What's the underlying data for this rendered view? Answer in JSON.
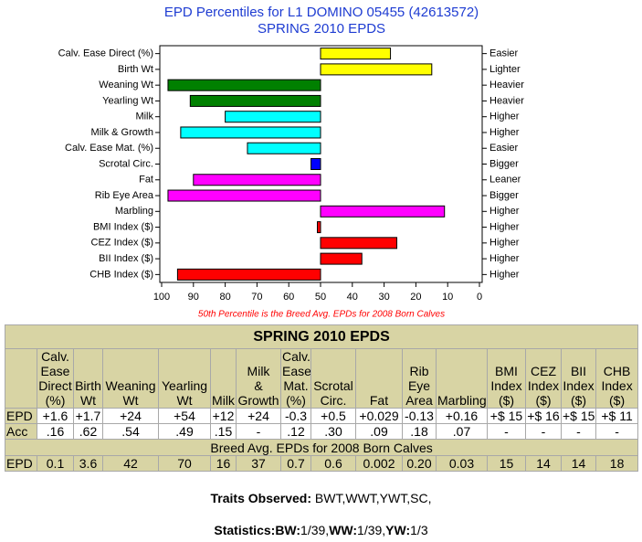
{
  "chart_data": {
    "type": "bar",
    "title": "EPD Percentiles for L1 DOMINO 05455 (42613572)",
    "subtitle": "SPRING 2010 EPDS",
    "categories": [
      "Calv. Ease Direct (%)",
      "Birth Wt",
      "Weaning Wt",
      "Yearling Wt",
      "Milk",
      "Milk & Growth",
      "Calv. Ease Mat. (%)",
      "Scrotal Circ.",
      "Fat",
      "Rib Eye Area",
      "Marbling",
      "BMI Index ($)",
      "CEZ Index ($)",
      "BII Index ($)",
      "CHB Index ($)"
    ],
    "values": [
      28,
      15,
      98,
      91,
      80,
      94,
      73,
      53,
      90,
      98,
      11,
      51,
      26,
      37,
      95
    ],
    "colors": [
      "#ffff00",
      "#ffff00",
      "#008000",
      "#008000",
      "#00ffff",
      "#00ffff",
      "#00ffff",
      "#0000ff",
      "#ff00ff",
      "#ff00ff",
      "#ff00ff",
      "#ff0000",
      "#ff0000",
      "#ff0000",
      "#ff0000"
    ],
    "base": 50,
    "right_labels": [
      "Easier",
      "Lighter",
      "Heavier",
      "Heavier",
      "Higher",
      "Higher",
      "Easier",
      "Bigger",
      "Leaner",
      "Bigger",
      "Higher",
      "Higher",
      "Higher",
      "Higher",
      "Higher"
    ],
    "xlim": [
      100,
      0
    ],
    "xticks": [
      100,
      90,
      80,
      70,
      60,
      50,
      40,
      30,
      20,
      10,
      0
    ],
    "note": "50th Percentile is the Breed Avg. EPDs for 2008 Born Calves"
  },
  "table": {
    "title": "SPRING 2010 EPDS",
    "columns": [
      [],
      [
        "Calv.",
        "Ease",
        "Direct",
        "(%)"
      ],
      [
        "Birth",
        "Wt"
      ],
      [
        "Weaning",
        "Wt"
      ],
      [
        "Yearling",
        "Wt"
      ],
      [
        "Milk"
      ],
      [
        "Milk",
        "&",
        "Growth"
      ],
      [
        "Calv.",
        "Ease",
        "Mat.",
        "(%)"
      ],
      [
        "Scrotal",
        "Circ."
      ],
      [
        "Fat"
      ],
      [
        "Rib",
        "Eye",
        "Area"
      ],
      [
        "Marbling"
      ],
      [
        "BMI",
        "Index",
        "($)"
      ],
      [
        "CEZ",
        "Index",
        "($)"
      ],
      [
        "BII",
        "Index",
        "($)"
      ],
      [
        "CHB",
        "Index",
        "($)"
      ]
    ],
    "rows": [
      [
        "EPD",
        "+1.6",
        "+1.7",
        "+24",
        "+54",
        "+12",
        "+24",
        "-0.3",
        "+0.5",
        "+0.029",
        "-0.13",
        "+0.16",
        "+$ 15",
        "+$ 16",
        "+$ 15",
        "+$ 11"
      ],
      [
        "Acc",
        ".16",
        ".62",
        ".54",
        ".49",
        ".15",
        "-",
        ".12",
        ".30",
        ".09",
        ".18",
        ".07",
        "-",
        "-",
        "-",
        "-"
      ]
    ],
    "breed_title": "Breed Avg. EPDs for 2008 Born Calves",
    "breed_row": [
      "EPD",
      "0.1",
      "3.6",
      "42",
      "70",
      "16",
      "37",
      "0.7",
      "0.6",
      "0.002",
      "0.20",
      "0.03",
      "15",
      "14",
      "14",
      "18"
    ]
  },
  "footer": {
    "traits_label": "Traits Observed:",
    "traits_value": "BWT,WWT,YWT,SC,",
    "statistics": [
      {
        "text": "Statistics:",
        "bold": true
      },
      {
        "text": "BW:",
        "bold": true
      },
      {
        "text": "1/39,",
        "bold": false
      },
      {
        "text": "WW:",
        "bold": true
      },
      {
        "text": "1/39,",
        "bold": false
      },
      {
        "text": "YW:",
        "bold": true
      },
      {
        "text": "1/3",
        "bold": false
      }
    ]
  }
}
